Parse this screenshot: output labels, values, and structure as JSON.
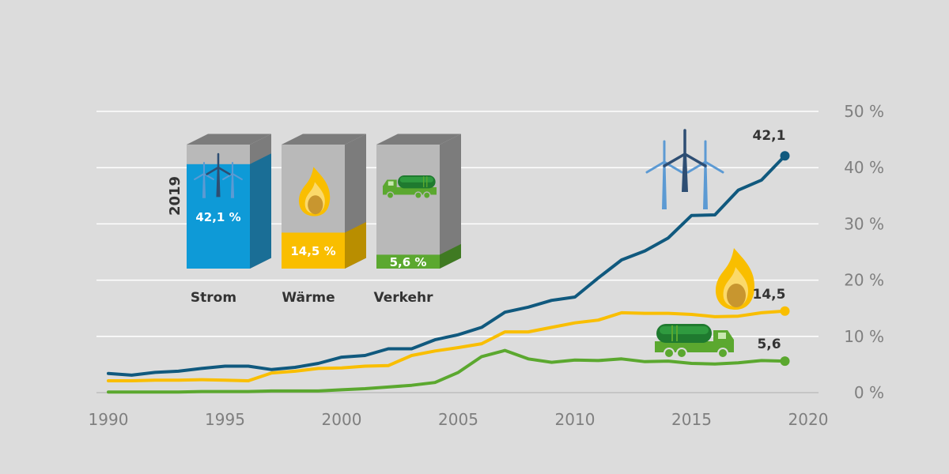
{
  "chart_data": {
    "type": "line",
    "x": [
      1990,
      1991,
      1992,
      1993,
      1994,
      1995,
      1996,
      1997,
      1998,
      1999,
      2000,
      2001,
      2002,
      2003,
      2004,
      2005,
      2006,
      2007,
      2008,
      2009,
      2010,
      2011,
      2012,
      2013,
      2014,
      2015,
      2016,
      2017,
      2018,
      2019
    ],
    "xlim": [
      1990,
      2020
    ],
    "ylim": [
      0,
      50
    ],
    "x_ticks": [
      "1990",
      "1995",
      "2000",
      "2005",
      "2010",
      "2015",
      "2020"
    ],
    "y_ticks": [
      "0 %",
      "10 %",
      "20 %",
      "30 %",
      "40 %",
      "50 %"
    ],
    "grid": "horizontal",
    "series": [
      {
        "key": "strom",
        "color": "#10597e",
        "values": [
          3.4,
          3.1,
          3.6,
          3.8,
          4.3,
          4.7,
          4.7,
          4.1,
          4.5,
          5.2,
          6.3,
          6.6,
          7.8,
          7.8,
          9.4,
          10.3,
          11.6,
          14.3,
          15.2,
          16.4,
          17.0,
          20.4,
          23.6,
          25.2,
          27.5,
          31.5,
          31.6,
          36.0,
          37.8,
          42.1
        ],
        "end_label": "42,1"
      },
      {
        "key": "waerme",
        "color": "#f9be00",
        "values": [
          2.1,
          2.1,
          2.2,
          2.2,
          2.3,
          2.2,
          2.1,
          3.5,
          3.8,
          4.3,
          4.4,
          4.7,
          4.8,
          6.6,
          7.4,
          8.0,
          8.7,
          10.8,
          10.8,
          11.6,
          12.4,
          12.9,
          14.2,
          14.1,
          14.1,
          13.9,
          13.5,
          13.6,
          14.2,
          14.5
        ],
        "end_label": "14,5"
      },
      {
        "key": "verkehr",
        "color": "#5ba82f",
        "values": [
          0.1,
          0.1,
          0.1,
          0.1,
          0.2,
          0.2,
          0.2,
          0.3,
          0.3,
          0.3,
          0.5,
          0.7,
          1.0,
          1.3,
          1.8,
          3.6,
          6.4,
          7.5,
          6.0,
          5.4,
          5.8,
          5.7,
          6.0,
          5.5,
          5.6,
          5.2,
          5.1,
          5.3,
          5.7,
          5.6
        ],
        "end_label": "5,6"
      }
    ],
    "inset": {
      "year_label": "2019",
      "bars": [
        {
          "category": "Strom",
          "value": 42.1,
          "label": "42,1 %",
          "color": "#0e9ad7",
          "icon": "wind-turbine-icon"
        },
        {
          "category": "Wärme",
          "value": 14.5,
          "label": "14,5 %",
          "color": "#f9be00",
          "icon": "flame-icon"
        },
        {
          "category": "Verkehr",
          "value": 5.6,
          "label": "5,6 %",
          "color": "#5ba82f",
          "icon": "tanker-truck-icon"
        }
      ]
    }
  },
  "icons": [
    "wind-turbine-icon",
    "flame-icon",
    "tanker-truck-icon"
  ]
}
